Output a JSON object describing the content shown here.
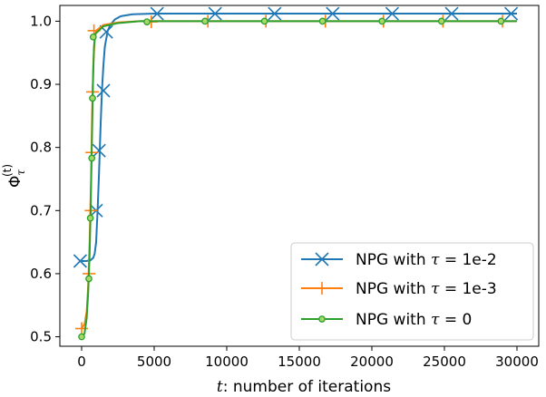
{
  "chart_data": {
    "type": "line",
    "xlabel_var": "t",
    "xlabel_rest": ": number of iterations",
    "ylabel_main": "Φ",
    "ylabel_sub": "τ",
    "ylabel_sup": "(t)",
    "xlim": [
      -1500,
      31500
    ],
    "ylim": [
      0.485,
      1.025
    ],
    "xticks": [
      0,
      5000,
      10000,
      15000,
      20000,
      25000,
      30000
    ],
    "xtick_labels": [
      "0",
      "5000",
      "10000",
      "15000",
      "20000",
      "25000",
      "30000"
    ],
    "yticks": [
      0.5,
      0.6,
      0.7,
      0.8,
      0.9,
      1.0
    ],
    "ytick_labels": [
      "0.5",
      "0.6",
      "0.7",
      "0.8",
      "0.9",
      "1.0"
    ],
    "legend_position": "lower-right",
    "series": [
      {
        "label_prefix": "NPG with ",
        "label_var": "τ",
        "label_suffix": " = 1e-2",
        "color": "#1f77b4",
        "marker": "x",
        "curve": [
          [
            0,
            0.62
          ],
          [
            300,
            0.62
          ],
          [
            600,
            0.621
          ],
          [
            800,
            0.625
          ],
          [
            900,
            0.632
          ],
          [
            1000,
            0.65
          ],
          [
            1100,
            0.7
          ],
          [
            1200,
            0.76
          ],
          [
            1300,
            0.83
          ],
          [
            1400,
            0.89
          ],
          [
            1500,
            0.93
          ],
          [
            1600,
            0.96
          ],
          [
            1800,
            0.985
          ],
          [
            2000,
            0.995
          ],
          [
            2300,
            1.003
          ],
          [
            2700,
            1.008
          ],
          [
            3500,
            1.011
          ],
          [
            5000,
            1.012
          ],
          [
            30000,
            1.012
          ]
        ],
        "markers": [
          [
            -100,
            0.62
          ],
          [
            1000,
            0.7
          ],
          [
            1200,
            0.795
          ],
          [
            1500,
            0.89
          ],
          [
            1700,
            0.983
          ],
          [
            5200,
            1.012
          ],
          [
            9200,
            1.012
          ],
          [
            13300,
            1.012
          ],
          [
            17300,
            1.012
          ],
          [
            21400,
            1.012
          ],
          [
            25500,
            1.012
          ],
          [
            29600,
            1.012
          ]
        ]
      },
      {
        "label_prefix": "NPG with ",
        "label_var": "τ",
        "label_suffix": " = 1e-3",
        "color": "#ff7f0e",
        "marker": "+",
        "curve": [
          [
            0,
            0.513
          ],
          [
            200,
            0.52
          ],
          [
            350,
            0.54
          ],
          [
            450,
            0.58
          ],
          [
            550,
            0.65
          ],
          [
            650,
            0.75
          ],
          [
            720,
            0.85
          ],
          [
            800,
            0.93
          ],
          [
            900,
            0.97
          ],
          [
            1000,
            0.985
          ],
          [
            1500,
            0.994
          ],
          [
            2500,
            0.998
          ],
          [
            4000,
            1.0
          ],
          [
            30000,
            1.0
          ]
        ],
        "markers": [
          [
            0,
            0.513
          ],
          [
            500,
            0.6
          ],
          [
            650,
            0.7
          ],
          [
            700,
            0.792
          ],
          [
            750,
            0.888
          ],
          [
            850,
            0.985
          ],
          [
            4800,
            0.999
          ],
          [
            8700,
            1.0
          ],
          [
            12700,
            1.0
          ],
          [
            16800,
            1.0
          ],
          [
            20800,
            1.0
          ],
          [
            24900,
            1.0
          ],
          [
            29000,
            1.0
          ]
        ]
      },
      {
        "label_prefix": "NPG with ",
        "label_var": "τ",
        "label_suffix": " = 0",
        "color": "#2ca02c",
        "marker": "o",
        "curve": [
          [
            0,
            0.5
          ],
          [
            200,
            0.505
          ],
          [
            350,
            0.53
          ],
          [
            450,
            0.57
          ],
          [
            550,
            0.63
          ],
          [
            620,
            0.7
          ],
          [
            700,
            0.8
          ],
          [
            780,
            0.9
          ],
          [
            850,
            0.96
          ],
          [
            950,
            0.98
          ],
          [
            1500,
            0.992
          ],
          [
            2500,
            0.997
          ],
          [
            4000,
            1.0
          ],
          [
            30000,
            1.0
          ]
        ],
        "markers": [
          [
            0,
            0.5
          ],
          [
            500,
            0.592
          ],
          [
            600,
            0.688
          ],
          [
            700,
            0.783
          ],
          [
            750,
            0.878
          ],
          [
            800,
            0.975
          ],
          [
            4500,
            0.999
          ],
          [
            8500,
            1.0
          ],
          [
            12600,
            1.0
          ],
          [
            16600,
            1.0
          ],
          [
            20700,
            1.0
          ],
          [
            24800,
            1.0
          ],
          [
            28900,
            1.0
          ]
        ]
      }
    ]
  }
}
